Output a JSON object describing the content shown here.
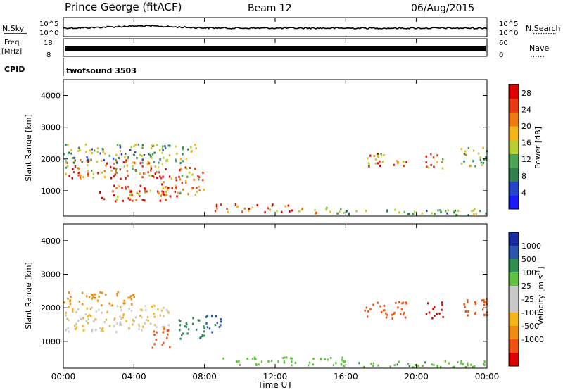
{
  "header": {
    "title": "Prince George (fitACF)",
    "beam": "Beam 12",
    "date": "06/Aug/2015"
  },
  "summary_panels": {
    "nsky_label": "N.Sky",
    "nsearch_label": "N.Search",
    "noise_ticks": [
      "10^5",
      "10^0"
    ],
    "freq_label": "Freq.",
    "freq_unit": "[MHz]",
    "freq_ticks": [
      "18",
      "8"
    ],
    "nave_label": "Nave",
    "nave_ticks": [
      "60",
      "0"
    ],
    "cpid_label": "CPID",
    "cpid_value": "twofsound 3503"
  },
  "colors": {
    "power_scale": [
      "#1a1aff",
      "#2545c8",
      "#2f7f4f",
      "#4aa455",
      "#b9cf31",
      "#f4b41a",
      "#f07a10",
      "#e83a10",
      "#e00000"
    ],
    "velocity_scale": [
      "#e00000",
      "#f05010",
      "#f08a10",
      "#f4b41a",
      "#c8c8c8",
      "#c8c8c8",
      "#60c040",
      "#2f8f4f",
      "#2a55b0",
      "#1a2aa0"
    ]
  },
  "chart_data": [
    {
      "type": "heatmap",
      "name_panel": "power",
      "ylabel": "Slant Range [km]",
      "xlabel": "",
      "xlim": [
        "00:00",
        "24:00"
      ],
      "ylim": [
        200,
        4500
      ],
      "y_ticks": [
        1000,
        2000,
        3000,
        4000
      ],
      "colorbar_label": "Power [dB]",
      "colorbar_ticks": [
        4,
        8,
        12,
        16,
        20,
        24,
        28
      ],
      "colorbar_range": [
        0,
        30
      ],
      "regions": [
        {
          "t0": 0.0,
          "t1": 6.0,
          "r0": 1400,
          "r1": 2000,
          "v": 22
        },
        {
          "t0": 0.0,
          "t1": 7.5,
          "r0": 1900,
          "r1": 2500,
          "v": 12
        },
        {
          "t0": 2.0,
          "t1": 6.0,
          "r0": 700,
          "r1": 1200,
          "v": 24
        },
        {
          "t0": 5.0,
          "t1": 6.5,
          "r0": 800,
          "r1": 1500,
          "v": 26
        },
        {
          "t0": 6.5,
          "t1": 8.0,
          "r0": 900,
          "r1": 1800,
          "v": 20
        },
        {
          "t0": 8.5,
          "t1": 13.0,
          "r0": 350,
          "r1": 600,
          "v": 27
        },
        {
          "t0": 13.0,
          "t1": 16.0,
          "r0": 300,
          "r1": 500,
          "v": 18
        },
        {
          "t0": 16.0,
          "t1": 24.0,
          "r0": 250,
          "r1": 450,
          "v": 12
        },
        {
          "t0": 17.0,
          "t1": 19.5,
          "r0": 1800,
          "r1": 2200,
          "v": 22
        },
        {
          "t0": 20.5,
          "t1": 21.5,
          "r0": 1700,
          "r1": 2200,
          "v": 20
        },
        {
          "t0": 22.5,
          "t1": 24.0,
          "r0": 1800,
          "r1": 2400,
          "v": 14
        }
      ]
    },
    {
      "type": "heatmap",
      "name_panel": "velocity",
      "ylabel": "Slant Range [km]",
      "xlabel": "Time UT",
      "x_ticks": [
        "00:00",
        "04:00",
        "08:00",
        "12:00",
        "16:00",
        "20:00",
        "00:00"
      ],
      "xlim": [
        "00:00",
        "24:00"
      ],
      "ylim": [
        200,
        4500
      ],
      "y_ticks": [
        1000,
        2000,
        3000,
        4000
      ],
      "colorbar_label": "Velocity [m s^-1]",
      "colorbar_ticks": [
        1000,
        500,
        100,
        25,
        -25,
        -100,
        -500,
        -1000
      ],
      "colorbar_range": [
        -1000,
        1000
      ],
      "regions": [
        {
          "t0": 0.0,
          "t1": 6.0,
          "r0": 1300,
          "r1": 2100,
          "v": 0
        },
        {
          "t0": 0.0,
          "t1": 4.0,
          "r0": 2100,
          "r1": 2500,
          "v": -60
        },
        {
          "t0": 5.0,
          "t1": 6.0,
          "r0": 800,
          "r1": 1400,
          "v": -300
        },
        {
          "t0": 6.5,
          "t1": 8.0,
          "r0": 1100,
          "r1": 1800,
          "v": 400
        },
        {
          "t0": 8.0,
          "t1": 9.0,
          "r0": 1200,
          "r1": 1800,
          "v": 600
        },
        {
          "t0": 9.0,
          "t1": 16.0,
          "r0": 300,
          "r1": 550,
          "v": 60
        },
        {
          "t0": 16.0,
          "t1": 24.0,
          "r0": 250,
          "r1": 450,
          "v": 80
        },
        {
          "t0": 17.0,
          "t1": 19.5,
          "r0": 1700,
          "r1": 2200,
          "v": -200
        },
        {
          "t0": 20.5,
          "t1": 21.5,
          "r0": 1700,
          "r1": 2200,
          "v": -700
        },
        {
          "t0": 22.5,
          "t1": 24.0,
          "r0": 1800,
          "r1": 2400,
          "v": -400
        }
      ]
    }
  ]
}
